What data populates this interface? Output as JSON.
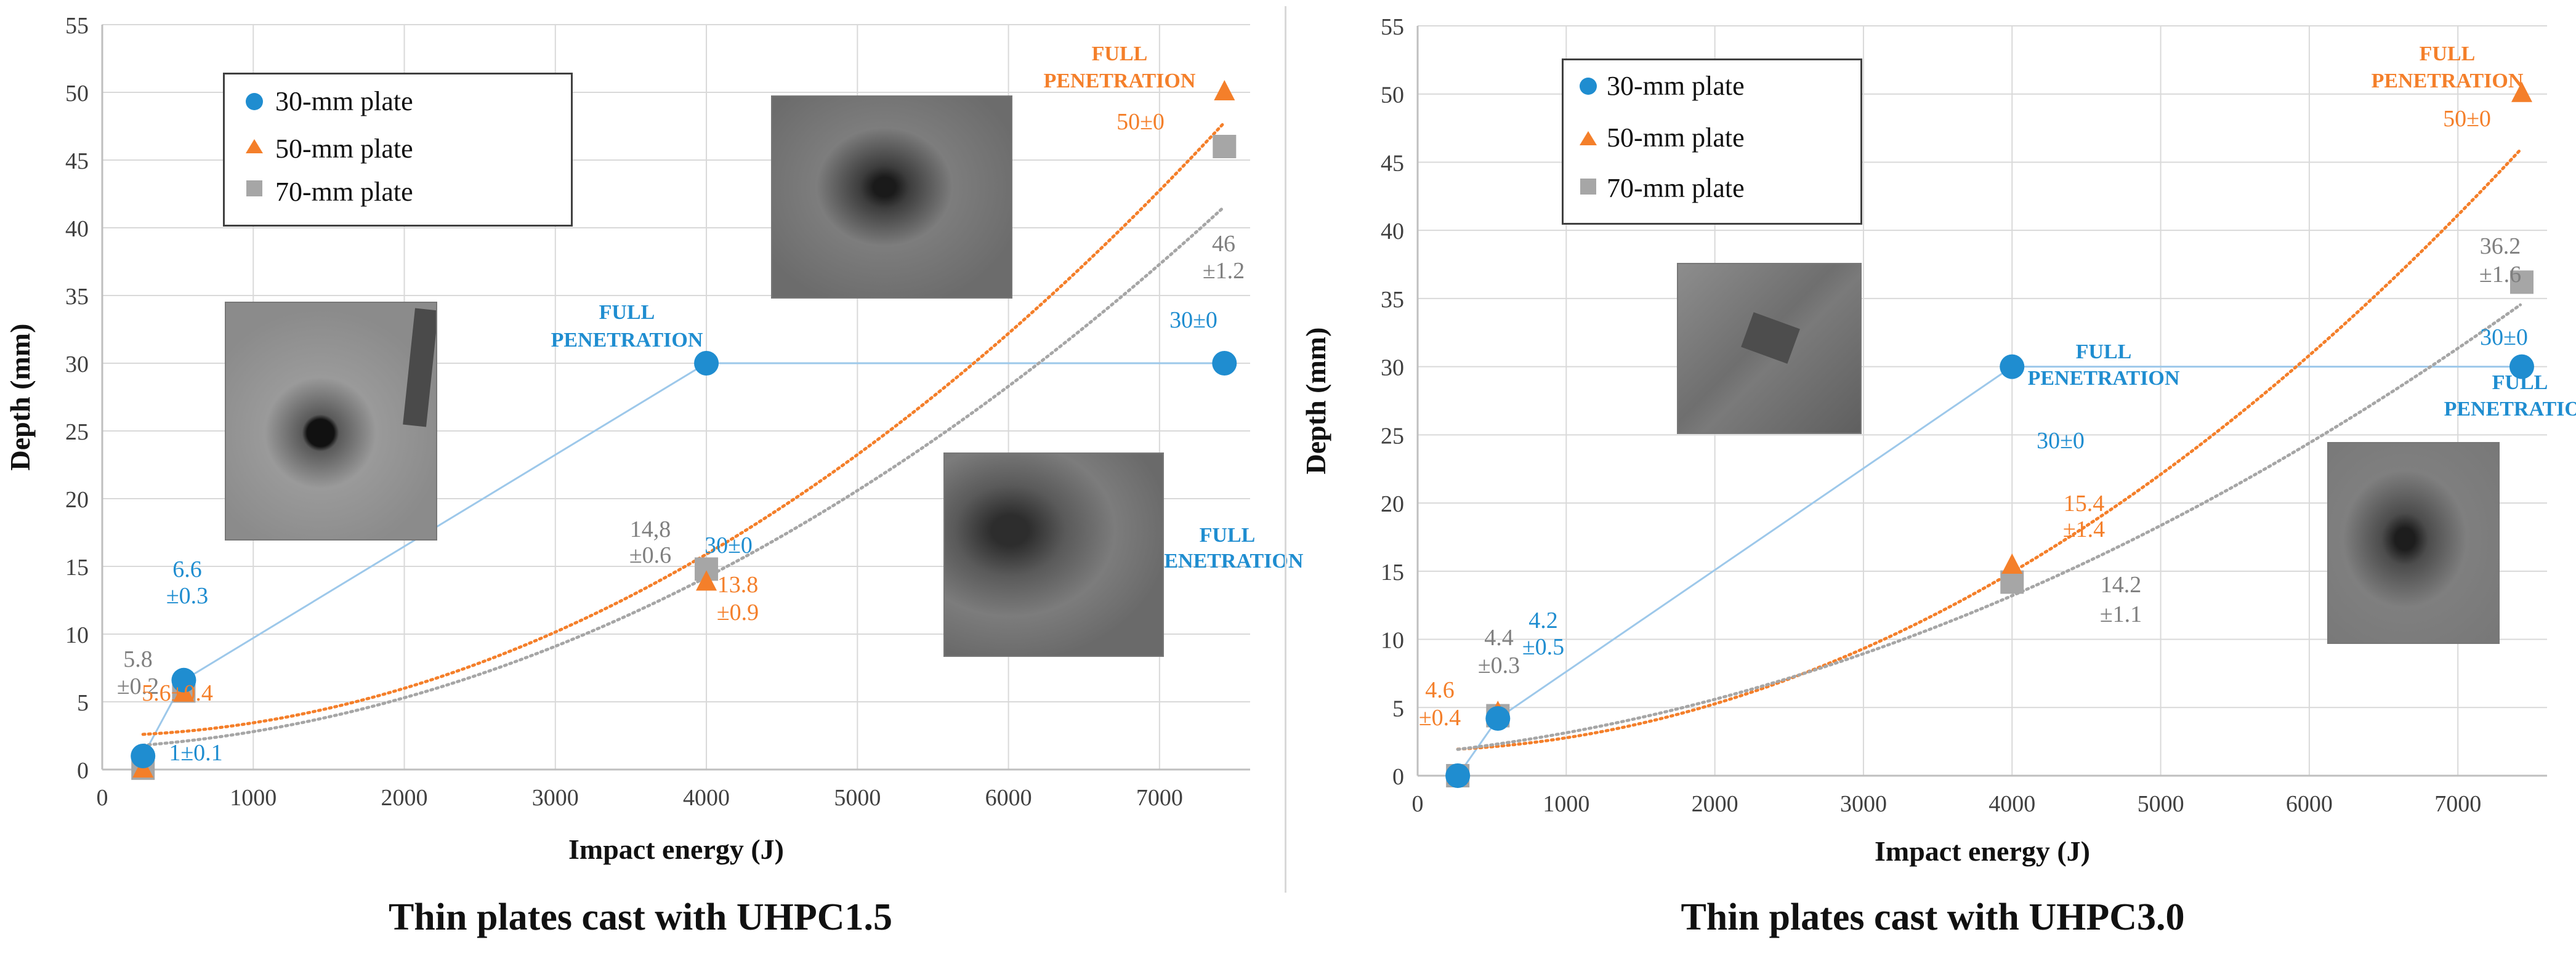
{
  "chart_data": [
    {
      "type": "scatter",
      "title": "Thin plates cast with UHPC1.5",
      "xlabel": "Impact energy (J)",
      "ylabel": "Depth (mm)",
      "xlim": [
        0,
        7600
      ],
      "ylim": [
        0,
        55
      ],
      "xticks": [
        0,
        1000,
        2000,
        3000,
        4000,
        5000,
        6000,
        7000
      ],
      "yticks": [
        0,
        5,
        10,
        15,
        20,
        25,
        30,
        35,
        40,
        45,
        50,
        55
      ],
      "grid": true,
      "legend_position": "top-left",
      "series": [
        {
          "name": "30-mm plate",
          "color": "#1f8dd0",
          "marker": "circle",
          "fit": "line",
          "x": [
            270,
            540,
            4000,
            7430
          ],
          "y": [
            1,
            6.6,
            30,
            30
          ]
        },
        {
          "name": "50-mm plate",
          "color": "#f47f2a",
          "marker": "triangle",
          "fit": "poly",
          "x": [
            270,
            540,
            4000,
            7430
          ],
          "y": [
            0,
            5.6,
            13.8,
            50
          ],
          "trend": [
            8e-07,
            0.00015,
            2.5
          ]
        },
        {
          "name": "70-mm plate",
          "color": "#a6a6a6",
          "marker": "square",
          "fit": "poly",
          "x": [
            270,
            540,
            4000,
            7430
          ],
          "y": [
            0.1,
            5.8,
            14.8,
            46
          ],
          "trend": [
            6.5e-07,
            0.00055,
            1.6
          ]
        }
      ],
      "annotations": [
        {
          "text": "6.6",
          "color": "#1f8dd0"
        },
        {
          "text": "±0.3",
          "color": "#1f8dd0"
        },
        {
          "text": "1±0.1",
          "color": "#1f8dd0"
        },
        {
          "text": "5.8",
          "color": "#7f7f7f"
        },
        {
          "text": "±0.2",
          "color": "#7f7f7f"
        },
        {
          "text": "5.6±0.4",
          "color": "#f47f2a"
        },
        {
          "text": "14,8",
          "color": "#7f7f7f"
        },
        {
          "text": "±0.6",
          "color": "#7f7f7f"
        },
        {
          "text": "13.8",
          "color": "#f47f2a"
        },
        {
          "text": "±0.9",
          "color": "#f47f2a"
        },
        {
          "text": "FULL",
          "color": "#1f8dd0",
          "bold": true
        },
        {
          "text": "PENETRATION",
          "color": "#1f8dd0",
          "bold": true
        },
        {
          "text": "30±0",
          "color": "#1f8dd0"
        },
        {
          "text": "30±0",
          "color": "#1f8dd0"
        },
        {
          "text": "FULL",
          "color": "#1f8dd0",
          "bold": true
        },
        {
          "text": "PENETRATION",
          "color": "#1f8dd0",
          "bold": true
        },
        {
          "text": "FULL",
          "color": "#f47f2a",
          "bold": true
        },
        {
          "text": "PENETRATION",
          "color": "#f47f2a",
          "bold": true
        },
        {
          "text": "50±0",
          "color": "#f47f2a"
        },
        {
          "text": "46",
          "color": "#7f7f7f"
        },
        {
          "text": "±1.2",
          "color": "#7f7f7f"
        }
      ]
    },
    {
      "type": "scatter",
      "title": "Thin plates cast with UHPC3.0",
      "xlabel": "Impact energy (J)",
      "ylabel": "Depth (mm)",
      "xlim": [
        0,
        7600
      ],
      "ylim": [
        0,
        55
      ],
      "xticks": [
        0,
        1000,
        2000,
        3000,
        4000,
        5000,
        6000,
        7000
      ],
      "yticks": [
        0,
        5,
        10,
        15,
        20,
        25,
        30,
        35,
        40,
        45,
        50,
        55
      ],
      "grid": true,
      "legend_position": "top-left",
      "series": [
        {
          "name": "30-mm plate",
          "color": "#1f8dd0",
          "marker": "circle",
          "fit": "line",
          "x": [
            270,
            540,
            4000,
            7430
          ],
          "y": [
            0,
            4.2,
            30,
            30
          ]
        },
        {
          "name": "50-mm plate",
          "color": "#f47f2a",
          "marker": "triangle",
          "fit": "poly",
          "x": [
            270,
            540,
            4000,
            7430
          ],
          "y": [
            0,
            4.6,
            15.4,
            50
          ],
          "trend": [
            7.8e-07,
            0.00015,
            1.85
          ]
        },
        {
          "name": "70-mm plate",
          "color": "#a6a6a6",
          "marker": "square",
          "fit": "poly",
          "x": [
            270,
            540,
            4000,
            7430
          ],
          "y": [
            0,
            4.4,
            14.2,
            36.2
          ],
          "trend": [
            4.5e-07,
            0.0011,
            1.6
          ]
        }
      ],
      "annotations": [
        {
          "text": "4.2",
          "color": "#1f8dd0"
        },
        {
          "text": "±0.5",
          "color": "#1f8dd0"
        },
        {
          "text": "4.4",
          "color": "#7f7f7f"
        },
        {
          "text": "±0.3",
          "color": "#7f7f7f"
        },
        {
          "text": "4.6",
          "color": "#f47f2a"
        },
        {
          "text": "±0.4",
          "color": "#f47f2a"
        },
        {
          "text": "15.4",
          "color": "#f47f2a"
        },
        {
          "text": "±1.4",
          "color": "#f47f2a"
        },
        {
          "text": "14.2",
          "color": "#7f7f7f"
        },
        {
          "text": "±1.1",
          "color": "#7f7f7f"
        },
        {
          "text": "FULL",
          "color": "#1f8dd0",
          "bold": true
        },
        {
          "text": "PENETRATION",
          "color": "#1f8dd0",
          "bold": true
        },
        {
          "text": "30±0",
          "color": "#1f8dd0"
        },
        {
          "text": "30±0",
          "color": "#1f8dd0"
        },
        {
          "text": "FULL",
          "color": "#1f8dd0",
          "bold": true
        },
        {
          "text": "PENETRATION",
          "color": "#1f8dd0",
          "bold": true
        },
        {
          "text": "FULL",
          "color": "#f47f2a",
          "bold": true
        },
        {
          "text": "PENETRATION",
          "color": "#f47f2a",
          "bold": true
        },
        {
          "text": "50±0",
          "color": "#f47f2a"
        },
        {
          "text": "36.2",
          "color": "#7f7f7f"
        },
        {
          "text": "±1.6",
          "color": "#7f7f7f"
        }
      ]
    }
  ]
}
